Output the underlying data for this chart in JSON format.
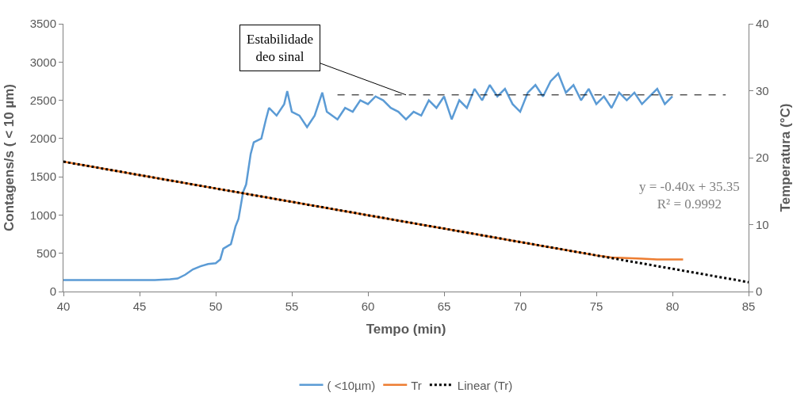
{
  "chart_data": {
    "type": "line",
    "xlabel": "Tempo (min)",
    "ylabel": "Contagens/s ( < 10 µm)",
    "y2label": "Temperatura (°C)",
    "xlim": [
      40,
      85
    ],
    "xticks": [
      40,
      45,
      50,
      55,
      60,
      65,
      70,
      75,
      80,
      85
    ],
    "ylim": [
      0,
      3500
    ],
    "yticks": [
      0,
      500,
      1000,
      1500,
      2000,
      2500,
      3000,
      3500
    ],
    "y2lim": [
      0,
      40
    ],
    "y2ticks": [
      0,
      10,
      20,
      30,
      40
    ],
    "legend": "bottom",
    "marker": "none",
    "series": [
      {
        "name": "( <10µm)",
        "color": "#5b9bd5",
        "line_style": "solid",
        "x": [
          40,
          41,
          42,
          43,
          44,
          45,
          46,
          47,
          47.5,
          48,
          48.5,
          49,
          49.5,
          50,
          50.3,
          50.5,
          51,
          51.3,
          51.5,
          51.8,
          52,
          52.3,
          52.5,
          53,
          53.3,
          53.5,
          54,
          54.5,
          54.7,
          55,
          55.5,
          56,
          56.5,
          57,
          57.3,
          58,
          58.5,
          59,
          59.5,
          60,
          60.5,
          61,
          61.5,
          62,
          62.5,
          63,
          63.5,
          64,
          64.5,
          65,
          65.5,
          66,
          66.5,
          67,
          67.5,
          68,
          68.5,
          69,
          69.5,
          70,
          70.5,
          71,
          71.5,
          72,
          72.5,
          73,
          73.5,
          74,
          74.5,
          75,
          75.5,
          76,
          76.5,
          77,
          77.5,
          78,
          78.5,
          79,
          79.5,
          80
        ],
        "values": [
          150,
          150,
          150,
          150,
          150,
          150,
          150,
          160,
          170,
          220,
          290,
          330,
          360,
          370,
          420,
          560,
          620,
          850,
          950,
          1300,
          1400,
          1800,
          1950,
          2000,
          2250,
          2400,
          2300,
          2450,
          2620,
          2350,
          2300,
          2150,
          2300,
          2600,
          2350,
          2250,
          2400,
          2350,
          2500,
          2450,
          2550,
          2500,
          2400,
          2350,
          2250,
          2350,
          2300,
          2500,
          2400,
          2550,
          2250,
          2500,
          2400,
          2650,
          2500,
          2700,
          2550,
          2650,
          2450,
          2350,
          2600,
          2700,
          2550,
          2750,
          2850,
          2600,
          2700,
          2500,
          2650,
          2450,
          2550,
          2400,
          2600,
          2500,
          2600,
          2450,
          2550,
          2650,
          2450,
          2550
        ]
      },
      {
        "name": "Tr",
        "color": "#ed7d31",
        "axis": "y2",
        "line_style": "solid",
        "x": [
          40,
          45,
          50,
          55,
          60,
          65,
          70,
          75,
          76,
          77,
          78,
          79,
          80,
          80.7
        ],
        "values": [
          19.4,
          17.4,
          15.4,
          13.4,
          11.4,
          9.4,
          7.4,
          5.4,
          5.1,
          5.0,
          4.9,
          4.8,
          4.8,
          4.8
        ]
      },
      {
        "name": "Linear (Tr)",
        "color": "#000000",
        "axis": "y2",
        "line_style": "dotted",
        "x": [
          40,
          85
        ],
        "values": [
          19.4,
          1.4
        ]
      }
    ],
    "ref_lines": [
      {
        "axis": "y",
        "value": 2570,
        "color": "#000000",
        "line_style": "dashed"
      }
    ],
    "annotations": [
      {
        "text": "Estabilidade\ndeo sinal",
        "x": 62.5,
        "y": 2570
      },
      "y = -0.40x + 35.35\nR² = 0.9992"
    ]
  }
}
